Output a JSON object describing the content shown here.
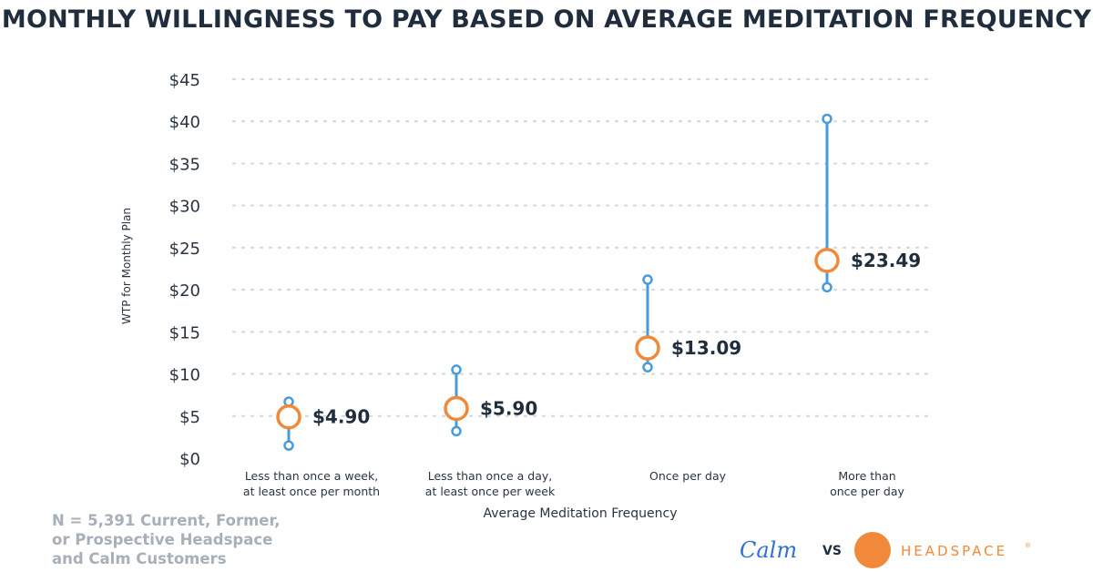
{
  "header": {
    "title": "MONTHLY WILLINGNESS TO PAY BASED ON AVERAGE MEDITATION FREQUENCY"
  },
  "colors": {
    "range_line": "#4a9bd9",
    "median_marker": "#f08a3a",
    "grid": "#d4d8dc",
    "title": "#1f2d3d",
    "note": "#a7afb8",
    "calm": "#2f6fd6"
  },
  "chart_data": {
    "type": "range-dot",
    "title": "MONTHLY WILLINGNESS TO PAY BASED ON AVERAGE MEDITATION FREQUENCY",
    "xlabel": "Average Meditation Frequency",
    "ylabel": "WTP for Monthly Plan",
    "ylim": [
      0,
      45
    ],
    "yticks": [
      {
        "value": 0,
        "label": "$0"
      },
      {
        "value": 5,
        "label": "$5"
      },
      {
        "value": 10,
        "label": "$10"
      },
      {
        "value": 15,
        "label": "$15"
      },
      {
        "value": 20,
        "label": "$20"
      },
      {
        "value": 25,
        "label": "$25"
      },
      {
        "value": 30,
        "label": "$30"
      },
      {
        "value": 35,
        "label": "$35"
      },
      {
        "value": 40,
        "label": "$40"
      },
      {
        "value": 45,
        "label": "$45"
      }
    ],
    "grid": true,
    "categories": [
      [
        "Less than once a week,",
        "at least once per month"
      ],
      [
        "Less than once a day,",
        "at least once per week"
      ],
      [
        "Once per day"
      ],
      [
        "More than",
        "once per day"
      ]
    ],
    "low": [
      1.5,
      3.2,
      10.8,
      20.3
    ],
    "high": [
      6.7,
      10.5,
      21.2,
      40.3
    ],
    "value": [
      4.9,
      5.9,
      13.09,
      23.49
    ],
    "value_labels": [
      "$4.90",
      "$5.90",
      "$13.09",
      "$23.49"
    ]
  },
  "footnote": {
    "lines": [
      "N = 5,391 Current, Former,",
      "or Prospective Headspace",
      "and Calm Customers"
    ]
  },
  "brands": {
    "calm": "Calm",
    "vs": "VS",
    "headspace": "HEADSPACE",
    "trademark": "®"
  }
}
